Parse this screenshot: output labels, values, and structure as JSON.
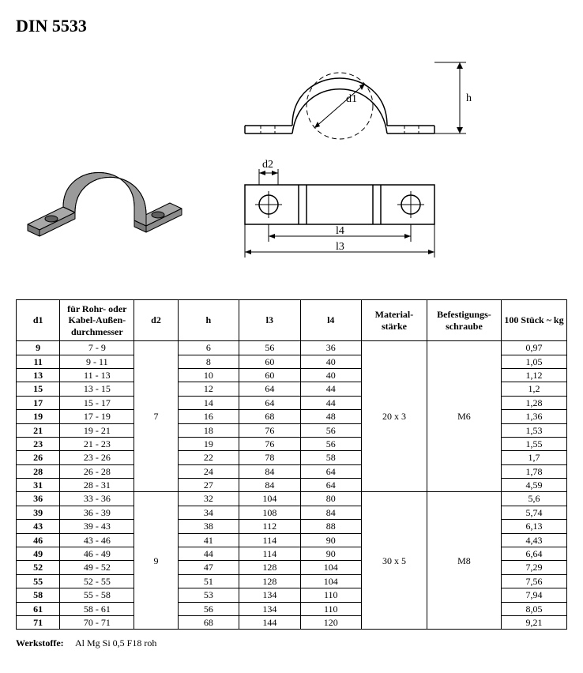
{
  "title": "DIN 5533",
  "headers": {
    "d1": "d1",
    "rohr": "für Rohr- oder Kabel-Außen-durchmesser",
    "d2": "d2",
    "h": "h",
    "l3": "l3",
    "l4": "l4",
    "mat": "Material-stärke",
    "bef": "Befestigungs-schraube",
    "kg": "100 Stück ~ kg"
  },
  "group1": {
    "d2": "7",
    "mat": "20 x 3",
    "bef": "M6",
    "rows": [
      {
        "d1": "9",
        "rohr": "7 - 9",
        "h": "6",
        "l3": "56",
        "l4": "36",
        "kg": "0,97"
      },
      {
        "d1": "11",
        "rohr": "9 - 11",
        "h": "8",
        "l3": "60",
        "l4": "40",
        "kg": "1,05"
      },
      {
        "d1": "13",
        "rohr": "11 - 13",
        "h": "10",
        "l3": "60",
        "l4": "40",
        "kg": "1,12"
      },
      {
        "d1": "15",
        "rohr": "13 - 15",
        "h": "12",
        "l3": "64",
        "l4": "44",
        "kg": "1,2"
      },
      {
        "d1": "17",
        "rohr": "15 - 17",
        "h": "14",
        "l3": "64",
        "l4": "44",
        "kg": "1,28"
      },
      {
        "d1": "19",
        "rohr": "17 - 19",
        "h": "16",
        "l3": "68",
        "l4": "48",
        "kg": "1,36"
      },
      {
        "d1": "21",
        "rohr": "19 - 21",
        "h": "18",
        "l3": "76",
        "l4": "56",
        "kg": "1,53"
      },
      {
        "d1": "23",
        "rohr": "21 - 23",
        "h": "19",
        "l3": "76",
        "l4": "56",
        "kg": "1,55"
      },
      {
        "d1": "26",
        "rohr": "23 - 26",
        "h": "22",
        "l3": "78",
        "l4": "58",
        "kg": "1,7"
      },
      {
        "d1": "28",
        "rohr": "26 - 28",
        "h": "24",
        "l3": "84",
        "l4": "64",
        "kg": "1,78"
      },
      {
        "d1": "31",
        "rohr": "28 - 31",
        "h": "27",
        "l3": "84",
        "l4": "64",
        "kg": "4,59"
      }
    ]
  },
  "group2": {
    "d2": "9",
    "mat": "30 x 5",
    "bef": "M8",
    "rows": [
      {
        "d1": "36",
        "rohr": "33 - 36",
        "h": "32",
        "l3": "104",
        "l4": "80",
        "kg": "5,6"
      },
      {
        "d1": "39",
        "rohr": "36 - 39",
        "h": "34",
        "l3": "108",
        "l4": "84",
        "kg": "5,74"
      },
      {
        "d1": "43",
        "rohr": "39 - 43",
        "h": "38",
        "l3": "112",
        "l4": "88",
        "kg": "6,13"
      },
      {
        "d1": "46",
        "rohr": "43 - 46",
        "h": "41",
        "l3": "114",
        "l4": "90",
        "kg": "4,43"
      },
      {
        "d1": "49",
        "rohr": "46 - 49",
        "h": "44",
        "l3": "114",
        "l4": "90",
        "kg": "6,64"
      },
      {
        "d1": "52",
        "rohr": "49 - 52",
        "h": "47",
        "l3": "128",
        "l4": "104",
        "kg": "7,29"
      },
      {
        "d1": "55",
        "rohr": "52 - 55",
        "h": "51",
        "l3": "128",
        "l4": "104",
        "kg": "7,56"
      },
      {
        "d1": "58",
        "rohr": "55 - 58",
        "h": "53",
        "l3": "134",
        "l4": "110",
        "kg": "7,94"
      },
      {
        "d1": "61",
        "rohr": "58 - 61",
        "h": "56",
        "l3": "134",
        "l4": "110",
        "kg": "8,05"
      },
      {
        "d1": "71",
        "rohr": "70 - 71",
        "h": "68",
        "l3": "144",
        "l4": "120",
        "kg": "9,21"
      }
    ]
  },
  "werkstoffe_label": "Werkstoffe:",
  "werkstoffe_value": "Al Mg Si 0,5 F18 roh",
  "dim_labels": {
    "d1": "d1",
    "d2": "d2",
    "h": "h",
    "l3": "l3",
    "l4": "l4"
  },
  "colors": {
    "stroke": "#000000",
    "fill3d": "#a0a0a0",
    "fill3d_dark": "#808080",
    "dash": "#000000"
  }
}
